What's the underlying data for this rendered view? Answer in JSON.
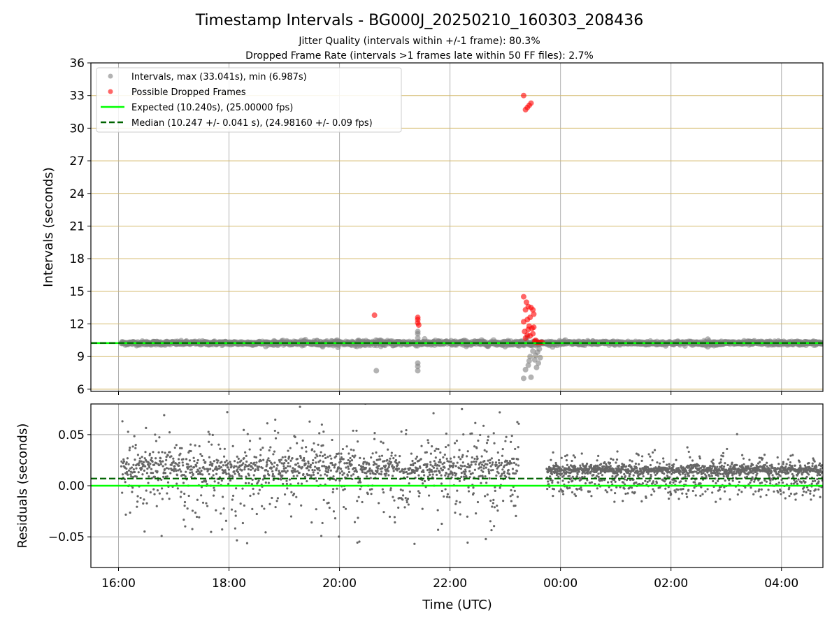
{
  "title": "Timestamp Intervals - BG000J_20250210_160303_208436",
  "subtitle_lines": [
    "Jitter Quality (intervals within +/-1 frame): 80.3%",
    "Dropped Frame Rate (intervals >1 frames late within 50 FF files): 2.7%"
  ],
  "xlabel": "Time (UTC)",
  "colors": {
    "intervals": "#808080",
    "dropped": "#ff0000",
    "expected": "#00ff00",
    "median": "#006400",
    "hgrid_top": "#d4b96a",
    "grid": "#b0b0b0",
    "residuals": "#666666"
  },
  "chart_data": [
    {
      "type": "scatter",
      "id": "intervals",
      "ylabel": "Intervals (seconds)",
      "ylim": [
        5.8,
        36
      ],
      "xlim": [
        "15:30",
        "04:45"
      ],
      "yticks": [
        6,
        9,
        12,
        15,
        18,
        21,
        24,
        27,
        30,
        33,
        36
      ],
      "xticks": [
        "16:00",
        "18:00",
        "20:00",
        "22:00",
        "00:00",
        "02:00",
        "04:00"
      ],
      "grid": "on",
      "legend_position": "top-left",
      "legend": [
        {
          "key": "intervals",
          "label": "Intervals, max (33.041s), min (6.987s)"
        },
        {
          "key": "dropped",
          "label": "Possible Dropped Frames"
        },
        {
          "key": "expected",
          "label": "Expected (10.240s), (25.00000 fps)"
        },
        {
          "key": "median",
          "label": "Median (10.247 +/- 0.041 s), (24.98160 +/- 0.09 fps)"
        }
      ],
      "expected_value": 10.24,
      "median_value": 10.247,
      "series": [
        {
          "name": "Intervals",
          "baseline_band": {
            "x_start": "16:03",
            "x_end": "04:45",
            "y": 10.24,
            "spread": 0.2
          },
          "outliers": [
            [
              "20:40",
              7.7
            ],
            [
              "21:25",
              7.7
            ],
            [
              "21:25",
              8.1
            ],
            [
              "21:25",
              8.4
            ],
            [
              "21:25",
              11.3
            ],
            [
              "21:25",
              11.1
            ],
            [
              "21:25",
              10.7
            ],
            [
              "23:20",
              7.0
            ],
            [
              "23:22",
              7.8
            ],
            [
              "23:25",
              8.2
            ],
            [
              "23:26",
              8.6
            ],
            [
              "23:27",
              9.0
            ],
            [
              "23:28",
              7.1
            ],
            [
              "23:30",
              9.5
            ],
            [
              "23:32",
              8.7
            ],
            [
              "23:33",
              9.1
            ],
            [
              "23:34",
              8.0
            ],
            [
              "23:35",
              9.4
            ],
            [
              "23:36",
              8.4
            ],
            [
              "23:37",
              9.7
            ],
            [
              "23:38",
              8.9
            ],
            [
              "23:24",
              10.8
            ],
            [
              "02:40",
              10.6
            ],
            [
              "02:40",
              9.9
            ]
          ]
        },
        {
          "name": "Possible Dropped Frames",
          "points": [
            [
              "20:38",
              12.8
            ],
            [
              "21:25",
              12.6
            ],
            [
              "21:25",
              12.4
            ],
            [
              "21:25",
              12.1
            ],
            [
              "21:26",
              11.9
            ],
            [
              "23:20",
              33.0
            ],
            [
              "23:22",
              31.7
            ],
            [
              "23:24",
              31.9
            ],
            [
              "23:26",
              32.1
            ],
            [
              "23:28",
              32.3
            ],
            [
              "23:20",
              14.5
            ],
            [
              "23:23",
              14.0
            ],
            [
              "23:25",
              13.6
            ],
            [
              "23:22",
              13.3
            ],
            [
              "23:28",
              13.5
            ],
            [
              "23:30",
              13.3
            ],
            [
              "23:31",
              12.9
            ],
            [
              "23:27",
              12.6
            ],
            [
              "23:24",
              12.4
            ],
            [
              "23:20",
              12.2
            ],
            [
              "23:26",
              11.8
            ],
            [
              "23:29",
              11.6
            ],
            [
              "23:21",
              11.3
            ],
            [
              "23:30",
              11.1
            ],
            [
              "23:24",
              11.0
            ],
            [
              "23:27",
              10.9
            ],
            [
              "23:22",
              10.7
            ],
            [
              "23:32",
              10.4
            ],
            [
              "23:34",
              10.3
            ],
            [
              "23:36",
              10.3
            ],
            [
              "23:38",
              10.3
            ],
            [
              "23:40",
              10.3
            ],
            [
              "23:33",
              10.5
            ],
            [
              "23:25",
              11.5
            ],
            [
              "23:31",
              11.7
            ]
          ]
        }
      ]
    },
    {
      "type": "scatter",
      "id": "residuals",
      "ylabel": "Residuals (seconds)",
      "ylim": [
        -0.08,
        0.08
      ],
      "yticks": [
        -0.05,
        0.0,
        0.05
      ],
      "ytick_labels": [
        "−0.05",
        "0.00",
        "0.05"
      ],
      "xlim": [
        "15:30",
        "04:45"
      ],
      "xticks": [
        "16:00",
        "18:00",
        "20:00",
        "22:00",
        "00:00",
        "02:00",
        "04:00"
      ],
      "grid": "on",
      "expected_value": 0.0,
      "median_value": 0.007,
      "series": [
        {
          "name": "Residuals",
          "segments": [
            {
              "x_start": "16:03",
              "x_end": "23:15",
              "center": 0.01,
              "spread": 0.045,
              "count": 1400
            },
            {
              "x_start": "23:45",
              "x_end": "04:45",
              "center": 0.008,
              "spread": 0.018,
              "count": 1500
            }
          ]
        }
      ]
    }
  ]
}
